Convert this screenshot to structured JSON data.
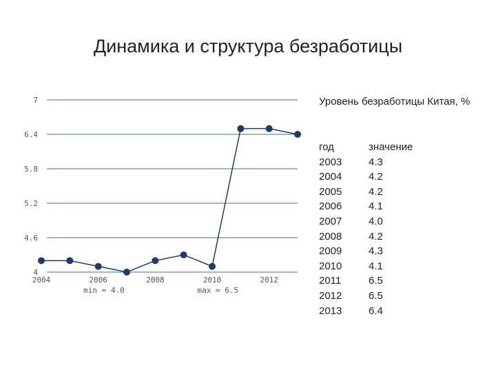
{
  "title": "Динамика и структура безработицы",
  "legend_text": "Уровень безработицы Китая, %",
  "table": {
    "header": [
      "год",
      "значение"
    ],
    "rows": [
      [
        "2003",
        "4.3"
      ],
      [
        "2004",
        "4.2"
      ],
      [
        "2005",
        "4.2"
      ],
      [
        "2006",
        "4.1"
      ],
      [
        "2007",
        "4.0"
      ],
      [
        "2008",
        "4.2"
      ],
      [
        "2009",
        "4.3"
      ],
      [
        "2010",
        "4.1"
      ],
      [
        "2011",
        "6.5"
      ],
      [
        "2012",
        "6.5"
      ],
      [
        "2013",
        "6.4"
      ]
    ]
  },
  "chart_data": {
    "type": "line",
    "title": "Динамика и структура безработицы",
    "xlabel": "",
    "ylabel": "",
    "x": [
      2004,
      2005,
      2006,
      2007,
      2008,
      2009,
      2010,
      2011,
      2012,
      2013
    ],
    "series": [
      {
        "name": "Уровень безработицы Китая, %",
        "values": [
          4.2,
          4.2,
          4.1,
          4.0,
          4.2,
          4.3,
          4.1,
          6.5,
          6.5,
          6.4
        ]
      }
    ],
    "xlim": [
      2004,
      2013
    ],
    "ylim": [
      4,
      7
    ],
    "y_ticks": [
      4,
      4.6,
      5.2,
      5.8,
      6.4,
      7
    ],
    "y_tick_labels": [
      "4",
      "4.6",
      "5.2",
      "5.8",
      "6.4",
      "7"
    ],
    "x_ticks": [
      2004,
      2006,
      2008,
      2010,
      2012
    ],
    "x_tick_labels": [
      "2004",
      "2006",
      "2008",
      "2010",
      "2012"
    ],
    "min_label": "min = 4.0",
    "max_label": "max = 6.5",
    "grid": true,
    "line_color": "#1f3a6e",
    "grid_color": "#4a6a9a"
  }
}
